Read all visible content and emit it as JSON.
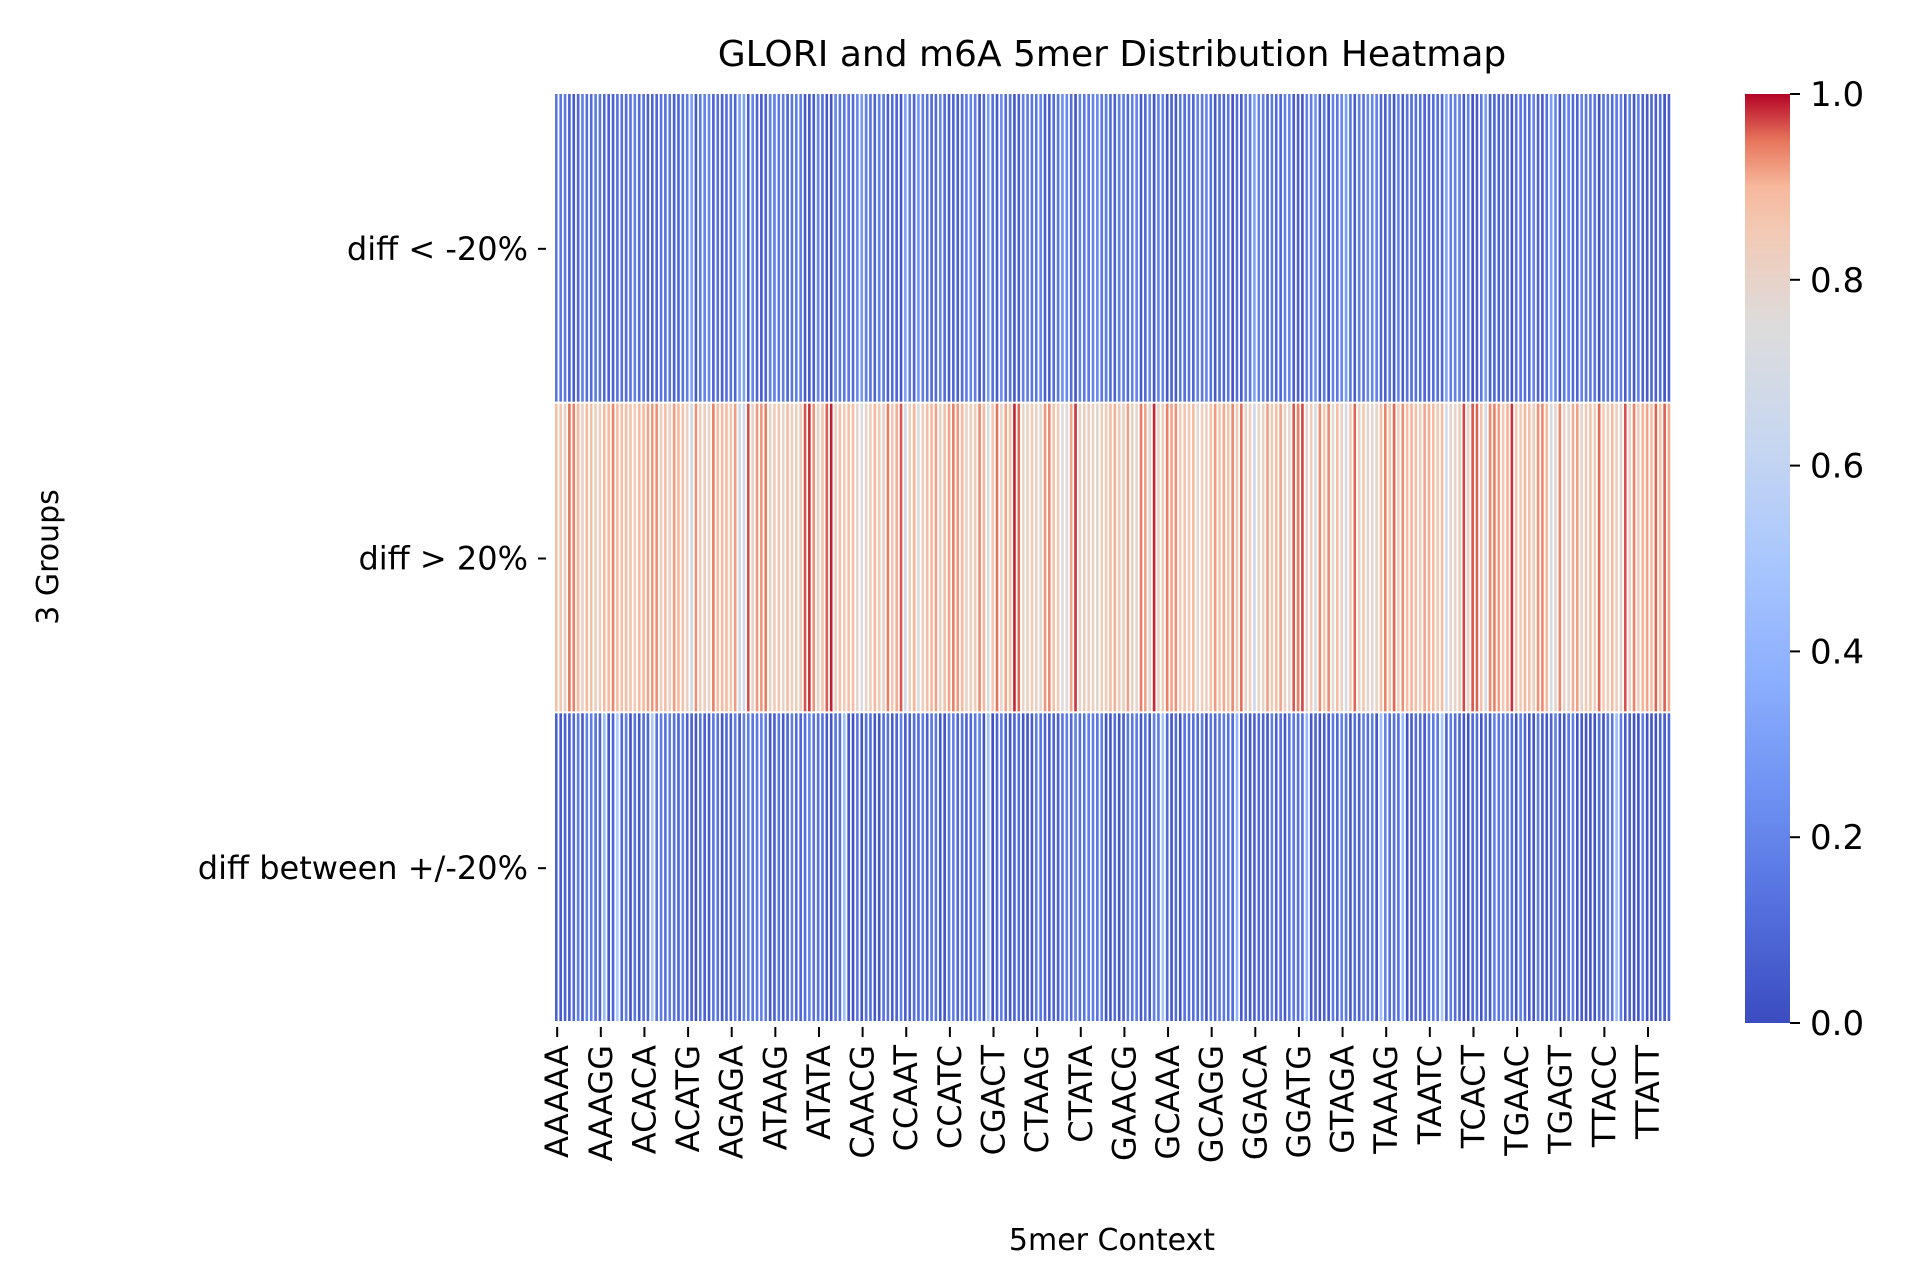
{
  "chart_data": {
    "type": "heatmap",
    "title": "GLORI and m6A 5mer Distribution Heatmap",
    "xlabel": "5mer Context",
    "ylabel": "3 Groups",
    "rows": [
      "diff < -20%",
      "diff > 20%",
      "diff between +/-20%"
    ],
    "x_tick_labels": [
      "AAAAA",
      "AAAGG",
      "ACACA",
      "ACATG",
      "AGAGA",
      "ATAAG",
      "ATATA",
      "CAACG",
      "CCAAT",
      "CCATC",
      "CGACT",
      "CTAAG",
      "CTATA",
      "GAACG",
      "GCAAA",
      "GCAGG",
      "GGACA",
      "GGATG",
      "GTAGA",
      "TAAAG",
      "TAATC",
      "TCACT",
      "TGAAC",
      "TGAGT",
      "TTACC",
      "TTATT"
    ],
    "num_columns": 256,
    "tick_step": 10,
    "colormap": "coolwarm",
    "value_range": [
      0,
      1
    ],
    "colorbar_ticks": [
      "0.0",
      "0.2",
      "0.4",
      "0.6",
      "0.8",
      "1.0"
    ],
    "colorbar_tick_values": [
      0.0,
      0.2,
      0.4,
      0.6,
      0.8,
      1.0
    ],
    "row_value_pattern": {
      "diff < -20%": {
        "typical": 0.1,
        "min": 0.0,
        "max": 0.35
      },
      "diff > 20%": {
        "typical": 0.9,
        "min": 0.35,
        "max": 1.0
      },
      "diff between +/-20%": {
        "typical": 0.1,
        "min": 0.0,
        "max": 0.7
      }
    }
  }
}
